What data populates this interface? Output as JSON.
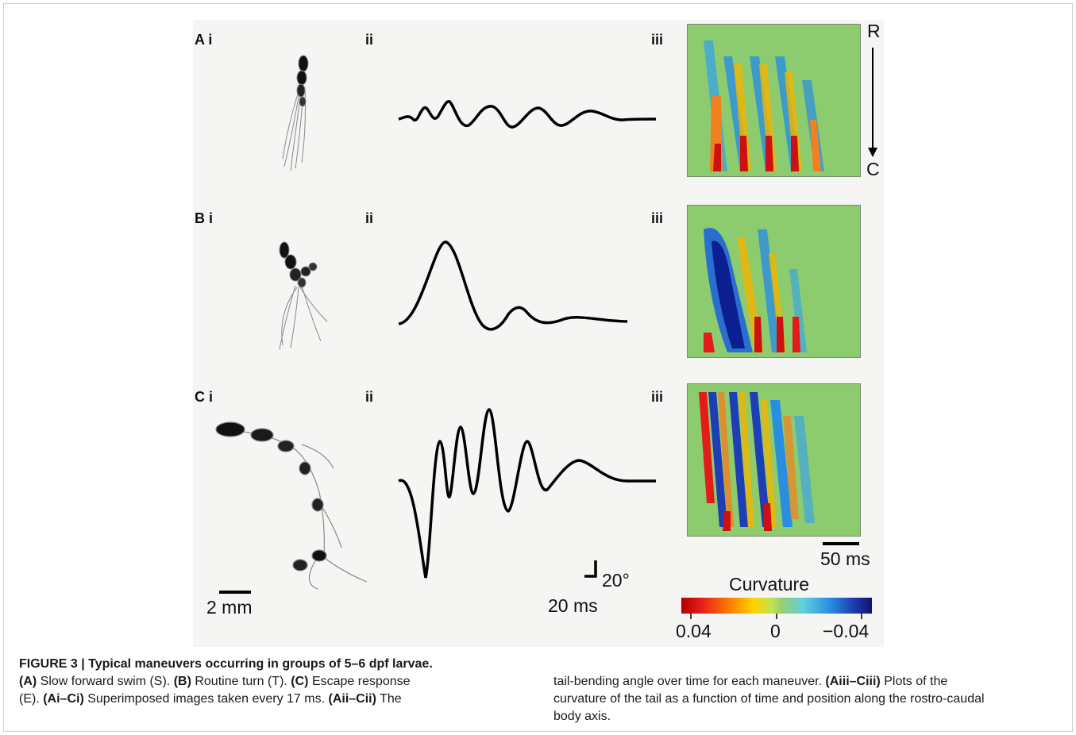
{
  "panels": {
    "a_label": "A i",
    "b_label": "B i",
    "c_label": "C i",
    "ii": "ii",
    "iii": "iii"
  },
  "axis_labels": {
    "rostral": "R",
    "caudal": "C"
  },
  "scalebars": {
    "length": "2 mm",
    "angle": "20°",
    "time_trace": "20 ms",
    "time_heatmap": "50 ms"
  },
  "colorbar": {
    "title": "Curvature",
    "min_label": "0.04",
    "mid_label": "0",
    "max_label": "−0.04"
  },
  "caption": {
    "title": "FIGURE 3 | Typical maneuvers occurring in groups of 5–6 dpf larvae.",
    "a_key": "(A)",
    "a_text": " Slow forward swim (S). ",
    "b_key": "(B)",
    "b_text": " Routine turn (T). ",
    "c_key": "(C)",
    "c_text": " Escape response",
    "c_text2": "(E). ",
    "ai_key": "(Ai–Ci)",
    "ai_text": " Superimposed images taken every 17 ms. ",
    "aii_key": "(Aii–Cii)",
    "aii_text": " The",
    "col2_line1": "tail-bending angle over time for each maneuver. ",
    "aiii_key": "(Aiii–Ciii)",
    "aiii_text": " Plots of the",
    "col2_line2": "curvature of the tail as a function of time and position along the rostro-caudal",
    "col2_line3": "body axis."
  }
}
